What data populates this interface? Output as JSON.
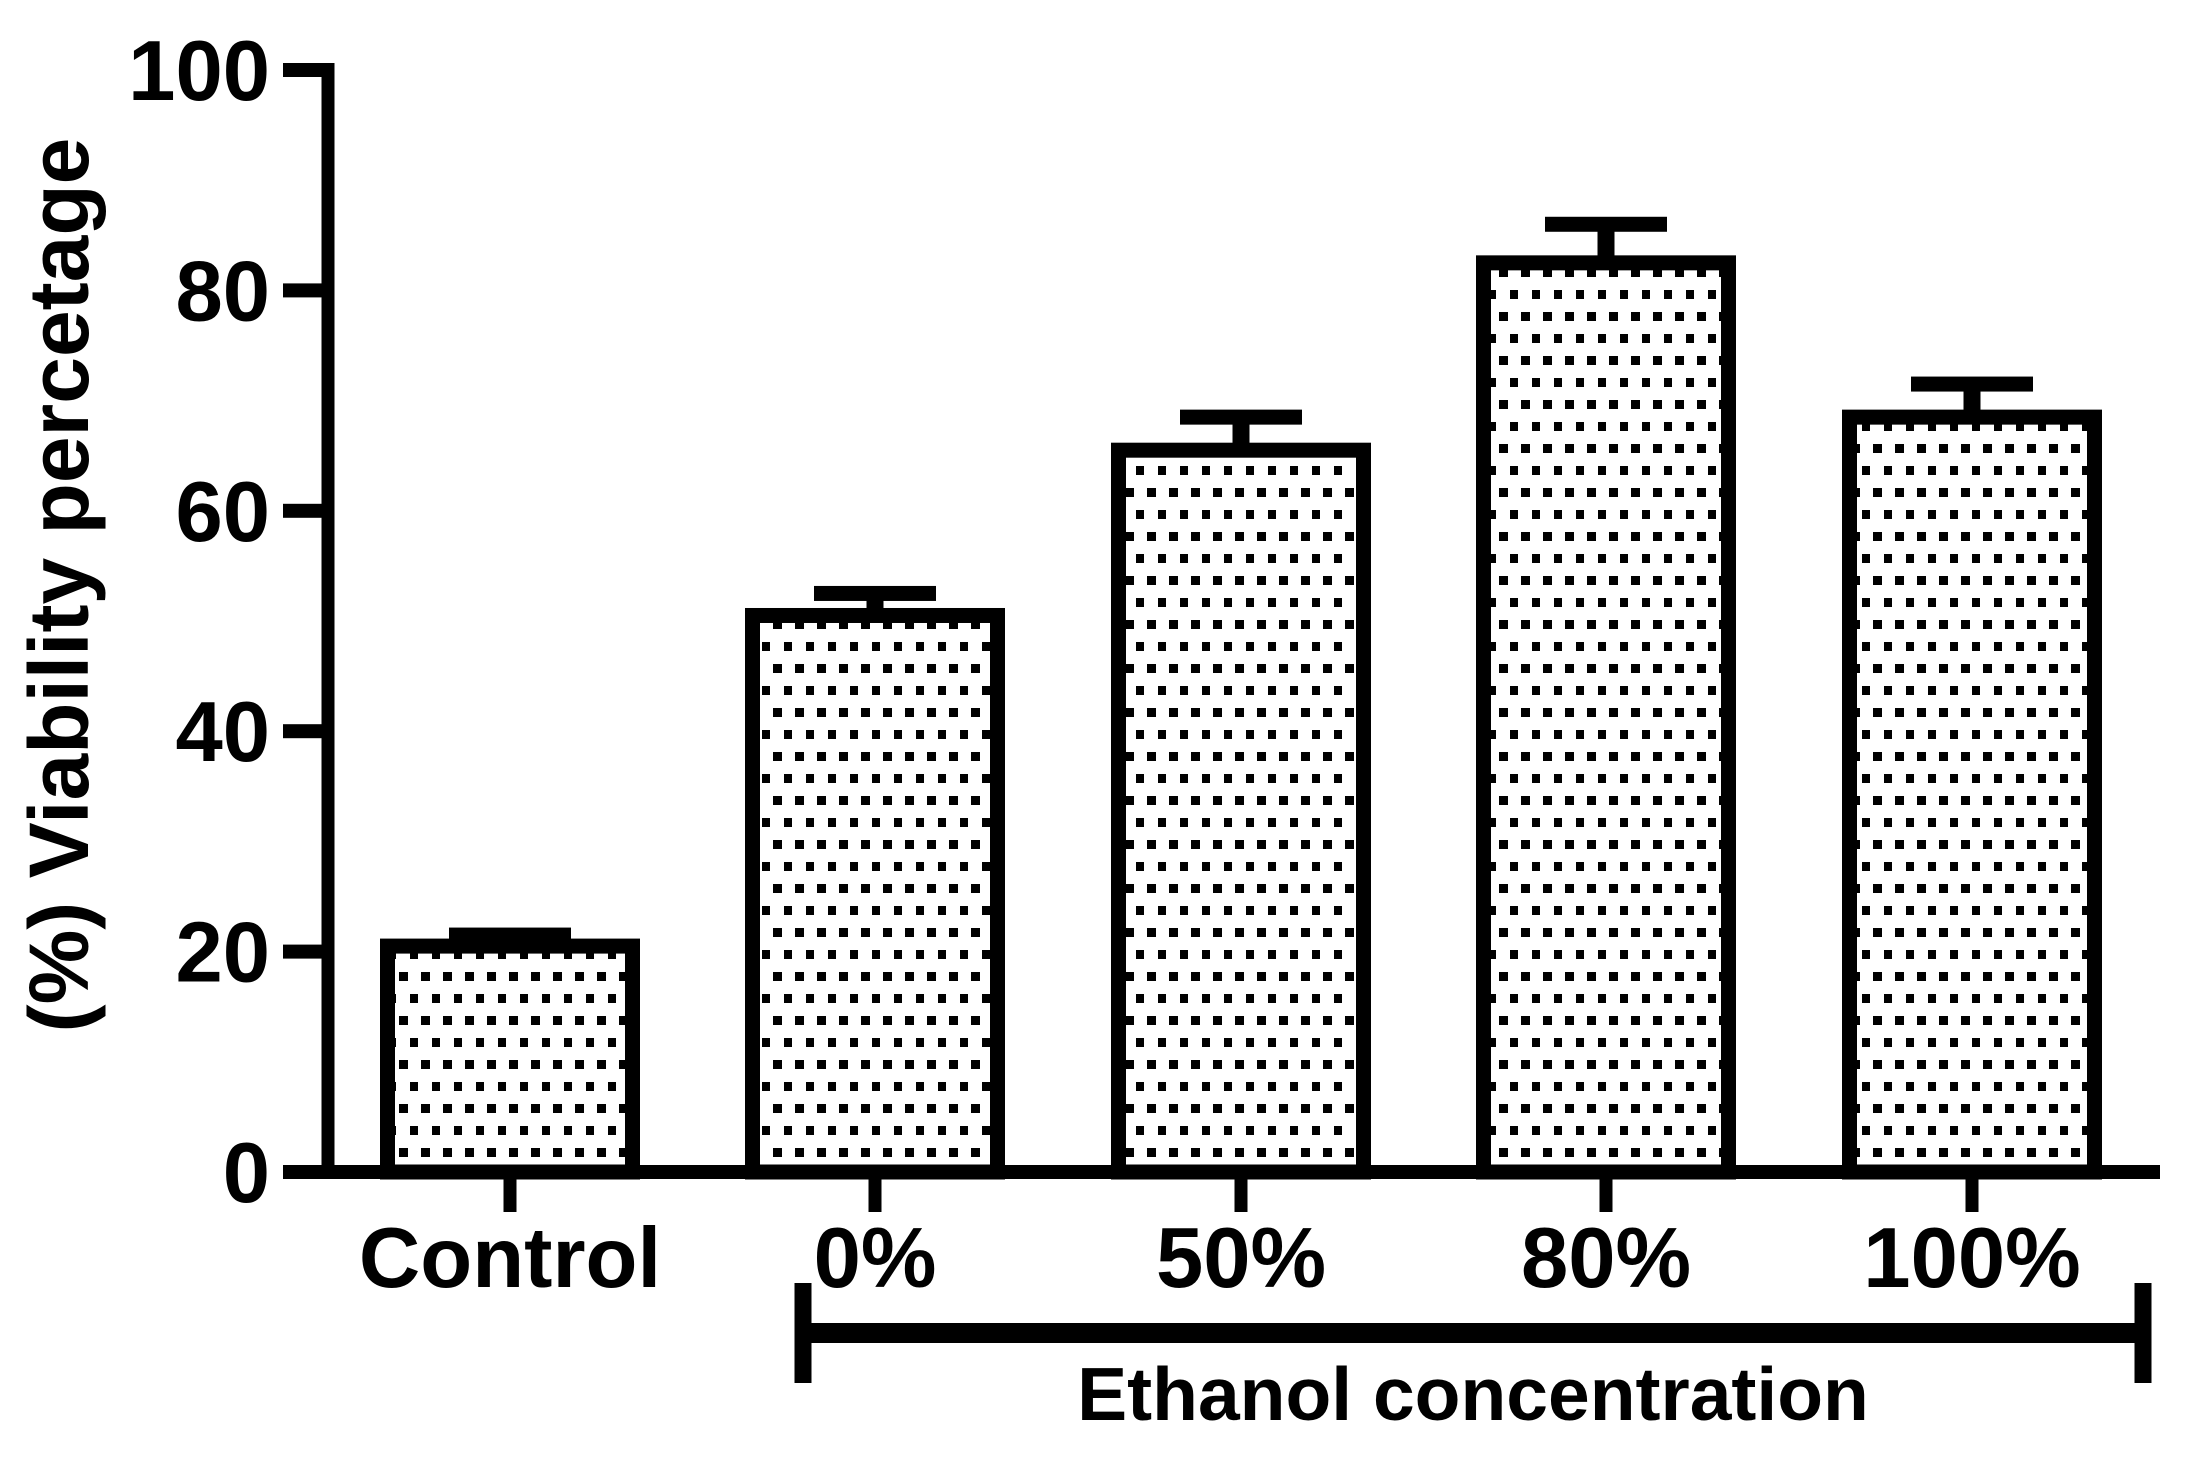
{
  "figure": {
    "background_color": "#ffffff",
    "foreground_color": "#000000"
  },
  "chart_data": {
    "type": "bar",
    "title": "",
    "categories": [
      "Control",
      "0%",
      "50%",
      "80%",
      "100%"
    ],
    "values": [
      20.5,
      50.5,
      65.5,
      82.5,
      68.5
    ],
    "errors_plus": [
      1,
      2,
      3,
      3.5,
      3
    ],
    "error_bar_style": "caps above bar tops, SEM upper only",
    "ylabel": "(%) Viability percetage",
    "xlabel": "",
    "ylim": [
      0,
      100
    ],
    "yticks": [
      "0",
      "20",
      "40",
      "60",
      "80",
      "100"
    ],
    "grid": false,
    "legend": false,
    "bar_fill": "white with black square-dot pattern, thick black border",
    "group_bracket": {
      "label": "Ethanol concentration",
      "start_category": "0%",
      "end_category": "100%"
    }
  }
}
